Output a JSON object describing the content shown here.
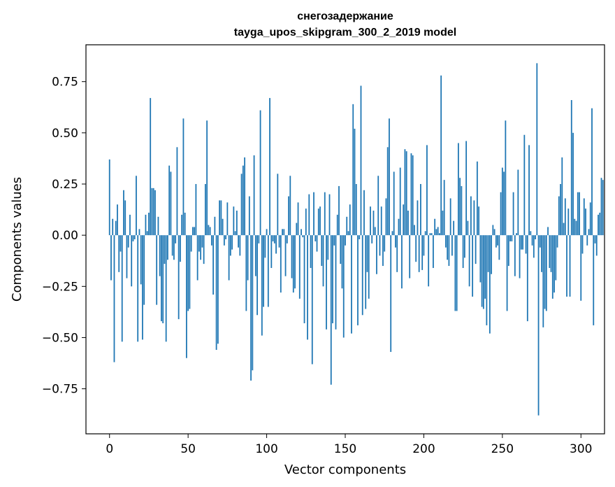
{
  "chart_data": {
    "type": "bar",
    "title": "снегозадержание",
    "subtitle": "tayga_upos_skipgram_300_2_2019 model",
    "xlabel": "Vector components",
    "ylabel": "Components values",
    "xlim": [
      -15,
      315
    ],
    "ylim": [
      -0.97,
      0.93
    ],
    "x_ticks": [
      0,
      50,
      100,
      150,
      200,
      250,
      300
    ],
    "x_tick_labels": [
      "0",
      "50",
      "100",
      "150",
      "200",
      "250",
      "300"
    ],
    "y_ticks": [
      0.75,
      0.5,
      0.25,
      0.0,
      -0.25,
      -0.5,
      -0.75
    ],
    "y_tick_labels": [
      "0.75",
      "0.50",
      "0.25",
      "0.00",
      "−0.25",
      "−0.50",
      "−0.75"
    ],
    "bar_color": "#1f77b4",
    "grid": false,
    "values": [
      0.37,
      -0.22,
      0.08,
      -0.62,
      0.07,
      0.15,
      -0.18,
      -0.08,
      -0.52,
      0.22,
      0.17,
      -0.21,
      -0.06,
      0.1,
      -0.25,
      -0.03,
      -0.02,
      0.29,
      -0.52,
      0.03,
      -0.24,
      -0.51,
      -0.34,
      0.1,
      0.02,
      0.11,
      0.67,
      0.23,
      0.23,
      0.22,
      -0.34,
      0.09,
      -0.2,
      -0.42,
      -0.43,
      -0.14,
      -0.52,
      -0.12,
      0.34,
      0.31,
      -0.1,
      -0.12,
      -0.04,
      0.43,
      -0.41,
      -0.13,
      0.1,
      0.57,
      0.11,
      -0.6,
      -0.37,
      -0.36,
      -0.08,
      0.04,
      0.04,
      0.25,
      -0.22,
      -0.08,
      -0.12,
      -0.06,
      -0.14,
      0.25,
      0.56,
      0.05,
      0.04,
      -0.05,
      -0.29,
      0.09,
      -0.56,
      -0.53,
      0.17,
      0.17,
      0.08,
      -0.05,
      -0.02,
      0.16,
      -0.22,
      -0.1,
      -0.07,
      0.14,
      0.02,
      0.12,
      -0.06,
      -0.1,
      0.3,
      0.34,
      0.38,
      -0.37,
      -0.22,
      0.19,
      -0.71,
      -0.66,
      0.39,
      -0.2,
      -0.39,
      -0.04,
      0.61,
      -0.49,
      -0.35,
      -0.11,
      0.03,
      -0.35,
      0.67,
      -0.16,
      -0.03,
      -0.04,
      -0.09,
      0.3,
      -0.06,
      -0.28,
      0.03,
      0.03,
      -0.2,
      -0.04,
      0.19,
      0.29,
      -0.21,
      -0.28,
      -0.26,
      0.06,
      0.16,
      -0.31,
      0.03,
      -0.01,
      -0.43,
      0.13,
      -0.51,
      0.2,
      -0.16,
      -0.63,
      0.21,
      -0.03,
      -0.08,
      0.13,
      0.14,
      -0.15,
      -0.25,
      0.21,
      -0.46,
      -0.12,
      0.2,
      -0.73,
      -0.43,
      -0.05,
      -0.46,
      0.1,
      0.24,
      -0.14,
      -0.26,
      -0.5,
      -0.05,
      0.09,
      0.02,
      0.15,
      -0.48,
      0.64,
      0.52,
      0.25,
      -0.44,
      -0.02,
      0.73,
      -0.39,
      0.22,
      -0.36,
      -0.18,
      -0.31,
      0.14,
      -0.04,
      0.12,
      0.04,
      -0.19,
      0.29,
      -0.1,
      0.14,
      -0.15,
      -0.08,
      0.18,
      0.43,
      0.57,
      -0.57,
      0.02,
      0.31,
      -0.06,
      -0.18,
      0.08,
      0.33,
      -0.26,
      0.15,
      0.42,
      0.41,
      0.12,
      -0.21,
      0.4,
      0.39,
      0.05,
      -0.13,
      0.17,
      -0.18,
      0.25,
      -0.17,
      -0.1,
      0.02,
      0.44,
      -0.25,
      0.01,
      0.01,
      -0.16,
      0.08,
      0.03,
      0.04,
      0.01,
      0.78,
      0.12,
      0.27,
      -0.06,
      -0.12,
      -0.15,
      0.18,
      -0.1,
      0.07,
      -0.37,
      -0.37,
      0.45,
      0.28,
      0.24,
      -0.16,
      -0.11,
      0.46,
      0.07,
      -0.25,
      0.19,
      -0.3,
      0.17,
      -0.14,
      0.36,
      0.14,
      -0.23,
      -0.35,
      -0.36,
      -0.31,
      -0.44,
      -0.18,
      -0.48,
      -0.19,
      0.05,
      0.03,
      -0.06,
      -0.05,
      -0.12,
      0.21,
      0.33,
      0.31,
      0.56,
      -0.37,
      -0.15,
      -0.03,
      -0.03,
      0.21,
      -0.2,
      0.01,
      0.32,
      -0.21,
      -0.07,
      -0.07,
      0.49,
      -0.09,
      -0.42,
      0.44,
      0.02,
      -0.05,
      -0.11,
      -0.02,
      0.84,
      -0.88,
      -0.06,
      -0.18,
      -0.45,
      -0.36,
      -0.37,
      0.04,
      -0.16,
      -0.18,
      -0.31,
      -0.28,
      -0.22,
      -0.06,
      0.19,
      0.25,
      0.38,
      0.06,
      0.18,
      -0.3,
      0.13,
      -0.3,
      0.66,
      0.5,
      0.08,
      0.07,
      0.21,
      0.21,
      -0.32,
      -0.09,
      0.18,
      0.13,
      -0.05,
      0.03,
      0.16,
      0.62,
      -0.44,
      -0.04,
      -0.1,
      0.1,
      0.11,
      0.28,
      0.27
    ]
  }
}
